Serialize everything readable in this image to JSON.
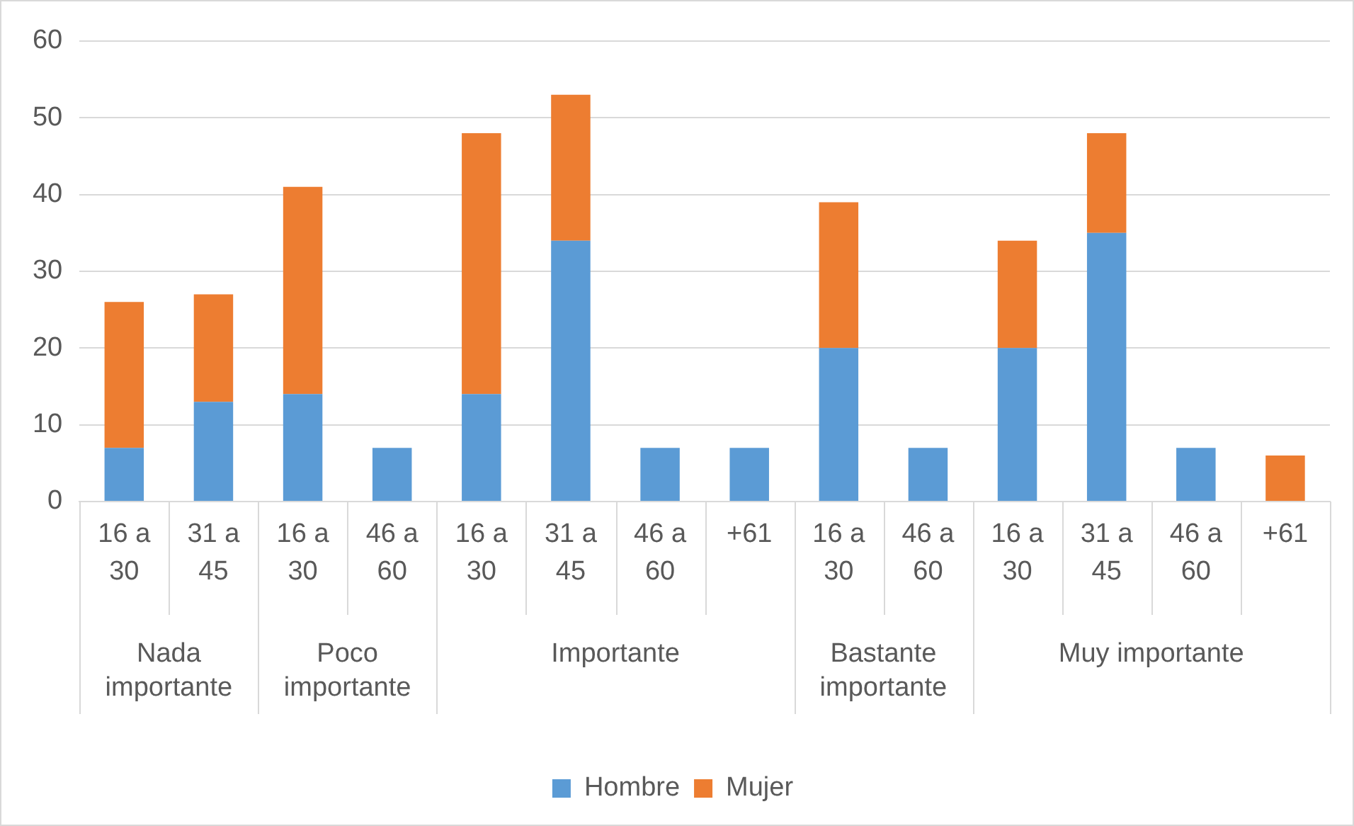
{
  "chart_data": {
    "type": "bar",
    "stacked": true,
    "categories": [
      "16 a 30",
      "31 a 45",
      "16 a 30",
      "46 a 60",
      "16 a 30",
      "31 a 45",
      "46 a 60",
      "+61",
      "16 a 30",
      "46 a 60",
      "16 a 30",
      "31 a 45",
      "46 a 60",
      "+61"
    ],
    "annotations": [
      "Nada importante",
      "Poco importante",
      "Importante",
      "Bastante importante",
      "Muy importante"
    ],
    "series": [
      {
        "name": "Hombre",
        "color": "#5b9bd5",
        "values": [
          7,
          13,
          14,
          7,
          14,
          34,
          7,
          7,
          20,
          7,
          20,
          35,
          7,
          null
        ]
      },
      {
        "name": "Mujer",
        "color": "#ed7d31",
        "values": [
          19,
          14,
          27,
          null,
          34,
          19,
          null,
          null,
          19,
          null,
          14,
          13,
          null,
          6
        ]
      }
    ],
    "ylim": [
      0,
      60
    ],
    "yticks": [
      0,
      10,
      20,
      30,
      40,
      50,
      60
    ],
    "grid": "y",
    "legend": "bottom"
  }
}
